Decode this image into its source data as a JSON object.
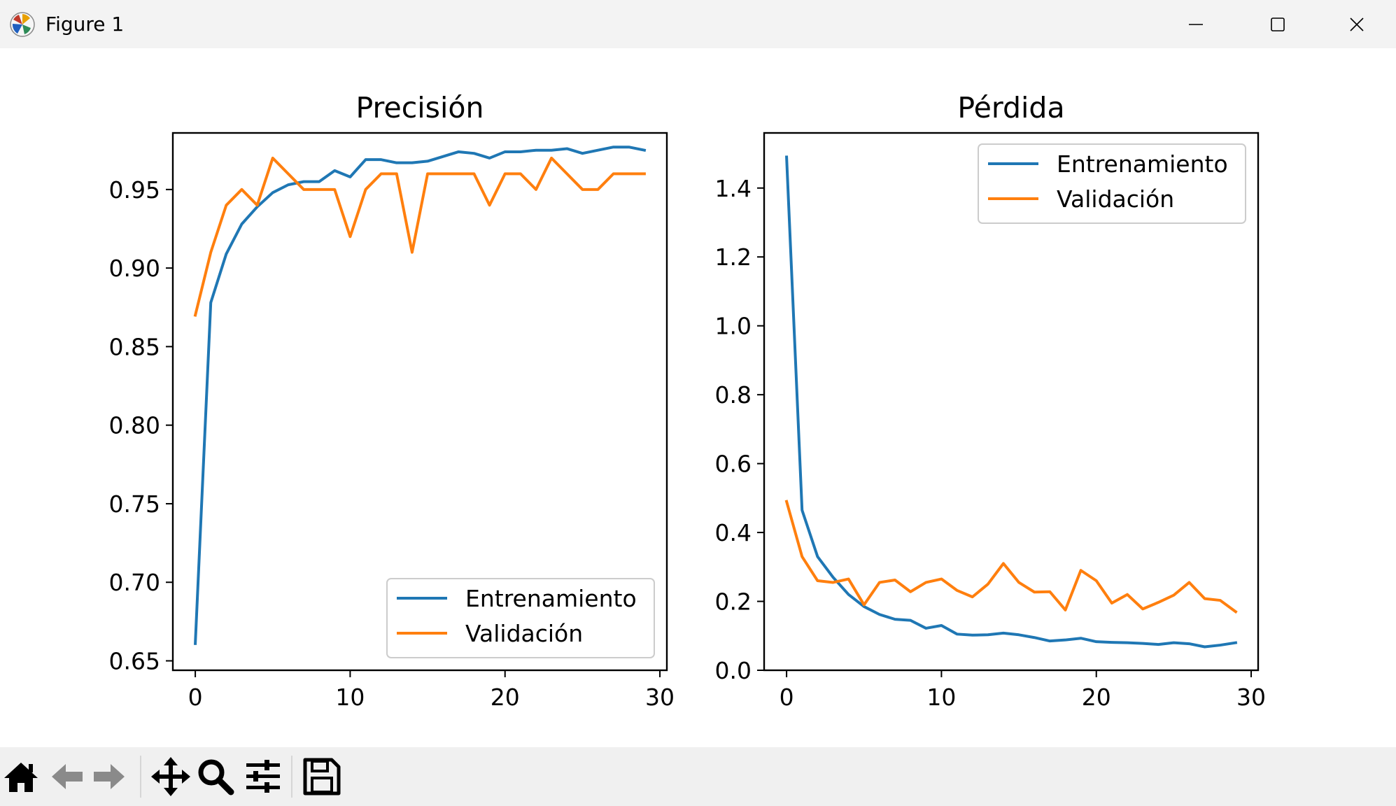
{
  "window": {
    "title": "Figure 1"
  },
  "toolbar": {
    "buttons": [
      "home-icon",
      "back-arrow-icon",
      "forward-arrow-icon",
      "pan-icon",
      "zoom-icon",
      "subplots-icon",
      "save-icon"
    ]
  },
  "colors": {
    "train": "#1f77b4",
    "val": "#ff7f0e",
    "axis": "#000000",
    "legend_border": "#cccccc"
  },
  "chart_data": [
    {
      "type": "line",
      "title": "Precisión",
      "xlabel": "",
      "ylabel": "",
      "xlim": [
        -1.45,
        30.45
      ],
      "ylim": [
        0.644,
        0.986
      ],
      "xticks": [
        0,
        10,
        20,
        30
      ],
      "yticks": [
        0.65,
        0.7,
        0.75,
        0.8,
        0.85,
        0.9,
        0.95
      ],
      "ytick_labels": [
        "0.65",
        "0.70",
        "0.75",
        "0.80",
        "0.85",
        "0.90",
        "0.95"
      ],
      "xtick_labels": [
        "0",
        "10",
        "20",
        "30"
      ],
      "grid": false,
      "legend": "lower right",
      "x": [
        0,
        1,
        2,
        3,
        4,
        5,
        6,
        7,
        8,
        9,
        10,
        11,
        12,
        13,
        14,
        15,
        16,
        17,
        18,
        19,
        20,
        21,
        22,
        23,
        24,
        25,
        26,
        27,
        28,
        29
      ],
      "series": [
        {
          "name": "Entrenamiento",
          "color": "#1f77b4",
          "values": [
            0.661,
            0.878,
            0.909,
            0.928,
            0.939,
            0.948,
            0.953,
            0.955,
            0.955,
            0.962,
            0.958,
            0.969,
            0.969,
            0.967,
            0.967,
            0.968,
            0.971,
            0.974,
            0.973,
            0.97,
            0.974,
            0.974,
            0.975,
            0.975,
            0.976,
            0.973,
            0.975,
            0.977,
            0.977,
            0.975
          ]
        },
        {
          "name": "Validación",
          "color": "#ff7f0e",
          "values": [
            0.87,
            0.91,
            0.94,
            0.95,
            0.94,
            0.97,
            0.96,
            0.95,
            0.95,
            0.95,
            0.92,
            0.95,
            0.96,
            0.96,
            0.91,
            0.96,
            0.96,
            0.96,
            0.96,
            0.94,
            0.96,
            0.96,
            0.95,
            0.97,
            0.96,
            0.95,
            0.95,
            0.96,
            0.96,
            0.96
          ]
        }
      ]
    },
    {
      "type": "line",
      "title": "Pérdida",
      "xlabel": "",
      "ylabel": "",
      "xlim": [
        -1.45,
        30.45
      ],
      "ylim": [
        0.0,
        1.56
      ],
      "xticks": [
        0,
        10,
        20,
        30
      ],
      "yticks": [
        0.0,
        0.2,
        0.4,
        0.6,
        0.8,
        1.0,
        1.2,
        1.4
      ],
      "ytick_labels": [
        "0.0",
        "0.2",
        "0.4",
        "0.6",
        "0.8",
        "1.0",
        "1.2",
        "1.4"
      ],
      "xtick_labels": [
        "0",
        "10",
        "20",
        "30"
      ],
      "grid": false,
      "legend": "upper right",
      "x": [
        0,
        1,
        2,
        3,
        4,
        5,
        6,
        7,
        8,
        9,
        10,
        11,
        12,
        13,
        14,
        15,
        16,
        17,
        18,
        19,
        20,
        21,
        22,
        23,
        24,
        25,
        26,
        27,
        28,
        29
      ],
      "series": [
        {
          "name": "Entrenamiento",
          "color": "#1f77b4",
          "values": [
            1.49,
            0.465,
            0.33,
            0.27,
            0.22,
            0.185,
            0.162,
            0.148,
            0.145,
            0.122,
            0.13,
            0.105,
            0.102,
            0.103,
            0.108,
            0.103,
            0.095,
            0.085,
            0.088,
            0.093,
            0.083,
            0.081,
            0.08,
            0.078,
            0.075,
            0.08,
            0.077,
            0.068,
            0.073,
            0.08
          ]
        },
        {
          "name": "Validación",
          "color": "#ff7f0e",
          "values": [
            0.49,
            0.33,
            0.26,
            0.255,
            0.265,
            0.19,
            0.255,
            0.262,
            0.228,
            0.255,
            0.265,
            0.232,
            0.213,
            0.25,
            0.31,
            0.255,
            0.227,
            0.228,
            0.175,
            0.29,
            0.26,
            0.195,
            0.22,
            0.178,
            0.197,
            0.218,
            0.255,
            0.208,
            0.203,
            0.17
          ]
        }
      ]
    }
  ]
}
